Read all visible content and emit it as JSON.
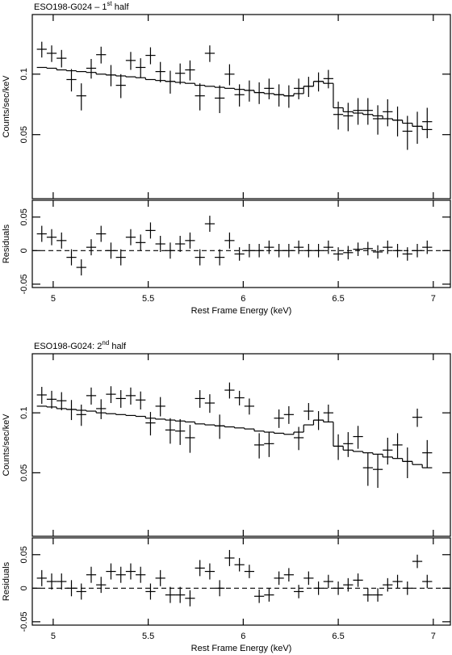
{
  "chart_data": [
    {
      "type": "errorbar",
      "title": "ESO198-G024 – 1",
      "title_sup": "st",
      "title_end": " half",
      "ylabel": "Counts/sec/keV",
      "yscale": "log",
      "color": "#000000",
      "xlim": [
        4.89,
        7.09
      ],
      "xticks": [
        5,
        5.5,
        6,
        6.5,
        7
      ],
      "ylim": [
        0.024,
        0.198
      ],
      "yticks": [
        0.05,
        0.1
      ],
      "x": [
        4.94,
        4.992,
        5.044,
        5.096,
        5.148,
        5.2,
        5.252,
        5.304,
        5.356,
        5.408,
        5.46,
        5.512,
        5.564,
        5.616,
        5.668,
        5.72,
        5.772,
        5.824,
        5.876,
        5.928,
        5.98,
        6.032,
        6.084,
        6.136,
        6.188,
        6.24,
        6.292,
        6.344,
        6.396,
        6.448,
        6.5,
        6.552,
        6.604,
        6.656,
        6.708,
        6.76,
        6.812,
        6.864,
        6.916,
        6.968
      ],
      "xerr": 0.026,
      "values": [
        0.133,
        0.127,
        0.12,
        0.094,
        0.078,
        0.107,
        0.125,
        0.099,
        0.088,
        0.117,
        0.108,
        0.124,
        0.103,
        0.092,
        0.101,
        0.105,
        0.078,
        0.127,
        0.076,
        0.1,
        0.079,
        0.083,
        0.081,
        0.085,
        0.079,
        0.078,
        0.085,
        0.087,
        0.092,
        0.095,
        0.063,
        0.062,
        0.066,
        0.066,
        0.06,
        0.065,
        0.059,
        0.052,
        0.055,
        0.058
      ],
      "yerr": [
        0.012,
        0.012,
        0.012,
        0.012,
        0.012,
        0.012,
        0.012,
        0.012,
        0.012,
        0.012,
        0.012,
        0.012,
        0.012,
        0.012,
        0.012,
        0.012,
        0.012,
        0.012,
        0.012,
        0.012,
        0.01,
        0.01,
        0.01,
        0.01,
        0.01,
        0.01,
        0.01,
        0.01,
        0.01,
        0.01,
        0.01,
        0.01,
        0.01,
        0.01,
        0.01,
        0.01,
        0.01,
        0.01,
        0.01,
        0.01
      ],
      "model": [
        0.108,
        0.107,
        0.105,
        0.104,
        0.103,
        0.102,
        0.1,
        0.099,
        0.098,
        0.097,
        0.096,
        0.094,
        0.093,
        0.092,
        0.091,
        0.09,
        0.088,
        0.087,
        0.086,
        0.085,
        0.084,
        0.083,
        0.081,
        0.08,
        0.079,
        0.078,
        0.08,
        0.087,
        0.092,
        0.09,
        0.068,
        0.065,
        0.064,
        0.063,
        0.062,
        0.06,
        0.059,
        0.057,
        0.055,
        0.053
      ]
    },
    {
      "type": "errorbar",
      "ylabel": "Residuals",
      "xlabel": "Rest Frame Energy (keV)",
      "color": "#000000",
      "xlim": [
        4.89,
        7.09
      ],
      "xticks": [
        5,
        5.5,
        6,
        6.5,
        7
      ],
      "ylim": [
        -0.055,
        0.075
      ],
      "yticks": [
        -0.05,
        0,
        0.05
      ],
      "x": [
        4.94,
        4.992,
        5.044,
        5.096,
        5.148,
        5.2,
        5.252,
        5.304,
        5.356,
        5.408,
        5.46,
        5.512,
        5.564,
        5.616,
        5.668,
        5.72,
        5.772,
        5.824,
        5.876,
        5.928,
        5.98,
        6.032,
        6.084,
        6.136,
        6.188,
        6.24,
        6.292,
        6.344,
        6.396,
        6.448,
        6.5,
        6.552,
        6.604,
        6.656,
        6.708,
        6.76,
        6.812,
        6.864,
        6.916,
        6.968
      ],
      "xerr": 0.026,
      "values": [
        0.025,
        0.02,
        0.015,
        -0.01,
        -0.025,
        0.005,
        0.025,
        0.0,
        -0.01,
        0.02,
        0.012,
        0.03,
        0.01,
        0.0,
        0.01,
        0.015,
        -0.01,
        0.04,
        -0.01,
        0.015,
        -0.005,
        0.0,
        0.0,
        0.005,
        0.0,
        0.0,
        0.005,
        0.0,
        0.0,
        0.005,
        -0.005,
        -0.003,
        0.002,
        0.003,
        -0.002,
        0.005,
        0.0,
        -0.005,
        0.0,
        0.005
      ],
      "yerr": [
        0.012,
        0.012,
        0.012,
        0.012,
        0.012,
        0.012,
        0.012,
        0.012,
        0.012,
        0.012,
        0.012,
        0.012,
        0.012,
        0.012,
        0.012,
        0.012,
        0.012,
        0.012,
        0.012,
        0.012,
        0.01,
        0.01,
        0.01,
        0.01,
        0.01,
        0.01,
        0.01,
        0.01,
        0.01,
        0.01,
        0.01,
        0.01,
        0.01,
        0.01,
        0.01,
        0.01,
        0.01,
        0.01,
        0.01,
        0.01
      ]
    },
    {
      "type": "errorbar",
      "title": "ESO198-G024: 2",
      "title_sup": "nd",
      "title_end": " half",
      "ylabel": "Counts/sec/keV",
      "yscale": "log",
      "color": "#000000",
      "xlim": [
        4.89,
        7.09
      ],
      "xticks": [
        5,
        5.5,
        6,
        6.5,
        7
      ],
      "ylim": [
        0.024,
        0.198
      ],
      "yticks": [
        0.05,
        0.1
      ],
      "x": [
        4.94,
        4.992,
        5.044,
        5.096,
        5.148,
        5.2,
        5.252,
        5.304,
        5.356,
        5.408,
        5.46,
        5.512,
        5.564,
        5.616,
        5.668,
        5.72,
        5.772,
        5.824,
        5.876,
        5.928,
        5.98,
        6.032,
        6.084,
        6.136,
        6.188,
        6.24,
        6.292,
        6.344,
        6.396,
        6.448,
        6.5,
        6.552,
        6.604,
        6.656,
        6.708,
        6.76,
        6.812,
        6.864,
        6.916,
        6.968
      ],
      "xerr": 0.026,
      "values": [
        0.123,
        0.117,
        0.115,
        0.104,
        0.098,
        0.122,
        0.105,
        0.124,
        0.118,
        0.122,
        0.116,
        0.089,
        0.108,
        0.082,
        0.081,
        0.075,
        0.118,
        0.112,
        0.086,
        0.13,
        0.119,
        0.108,
        0.069,
        0.07,
        0.094,
        0.098,
        0.075,
        0.102,
        0.092,
        0.1,
        0.068,
        0.07,
        0.076,
        0.053,
        0.052,
        0.065,
        0.069,
        0.057,
        0.095,
        0.063
      ],
      "yerr": [
        0.012,
        0.012,
        0.012,
        0.012,
        0.012,
        0.012,
        0.012,
        0.012,
        0.012,
        0.012,
        0.012,
        0.012,
        0.012,
        0.012,
        0.012,
        0.012,
        0.012,
        0.012,
        0.012,
        0.012,
        0.01,
        0.01,
        0.01,
        0.01,
        0.01,
        0.01,
        0.01,
        0.01,
        0.01,
        0.01,
        0.01,
        0.01,
        0.01,
        0.01,
        0.01,
        0.01,
        0.01,
        0.01,
        0.01,
        0.01
      ],
      "model": [
        0.108,
        0.107,
        0.105,
        0.104,
        0.103,
        0.102,
        0.1,
        0.099,
        0.098,
        0.097,
        0.096,
        0.094,
        0.093,
        0.092,
        0.091,
        0.09,
        0.088,
        0.087,
        0.086,
        0.085,
        0.084,
        0.083,
        0.081,
        0.08,
        0.079,
        0.078,
        0.08,
        0.087,
        0.092,
        0.09,
        0.068,
        0.065,
        0.064,
        0.063,
        0.062,
        0.06,
        0.059,
        0.057,
        0.055,
        0.053
      ]
    },
    {
      "type": "errorbar",
      "ylabel": "Residuals",
      "xlabel": "Rest Frame Energy (keV)",
      "color": "#000000",
      "xlim": [
        4.89,
        7.09
      ],
      "xticks": [
        5,
        5.5,
        6,
        6.5,
        7
      ],
      "ylim": [
        -0.055,
        0.075
      ],
      "yticks": [
        -0.05,
        0,
        0.05
      ],
      "x": [
        4.94,
        4.992,
        5.044,
        5.096,
        5.148,
        5.2,
        5.252,
        5.304,
        5.356,
        5.408,
        5.46,
        5.512,
        5.564,
        5.616,
        5.668,
        5.72,
        5.772,
        5.824,
        5.876,
        5.928,
        5.98,
        6.032,
        6.084,
        6.136,
        6.188,
        6.24,
        6.292,
        6.344,
        6.396,
        6.448,
        6.5,
        6.552,
        6.604,
        6.656,
        6.708,
        6.76,
        6.812,
        6.864,
        6.916,
        6.968
      ],
      "xerr": 0.026,
      "values": [
        0.015,
        0.01,
        0.01,
        0.0,
        -0.005,
        0.02,
        0.005,
        0.025,
        0.02,
        0.025,
        0.02,
        -0.005,
        0.015,
        -0.01,
        -0.01,
        -0.015,
        0.03,
        0.025,
        0.0,
        0.045,
        0.035,
        0.025,
        -0.012,
        -0.01,
        0.015,
        0.02,
        -0.005,
        0.015,
        0.0,
        0.01,
        0.0,
        0.005,
        0.012,
        -0.01,
        -0.01,
        0.005,
        0.01,
        0.0,
        0.04,
        0.01
      ],
      "yerr": [
        0.012,
        0.012,
        0.012,
        0.012,
        0.012,
        0.012,
        0.012,
        0.012,
        0.012,
        0.012,
        0.012,
        0.012,
        0.012,
        0.012,
        0.012,
        0.012,
        0.012,
        0.012,
        0.012,
        0.012,
        0.01,
        0.01,
        0.01,
        0.01,
        0.01,
        0.01,
        0.01,
        0.01,
        0.01,
        0.01,
        0.01,
        0.01,
        0.01,
        0.01,
        0.01,
        0.01,
        0.01,
        0.01,
        0.01,
        0.01
      ]
    }
  ]
}
